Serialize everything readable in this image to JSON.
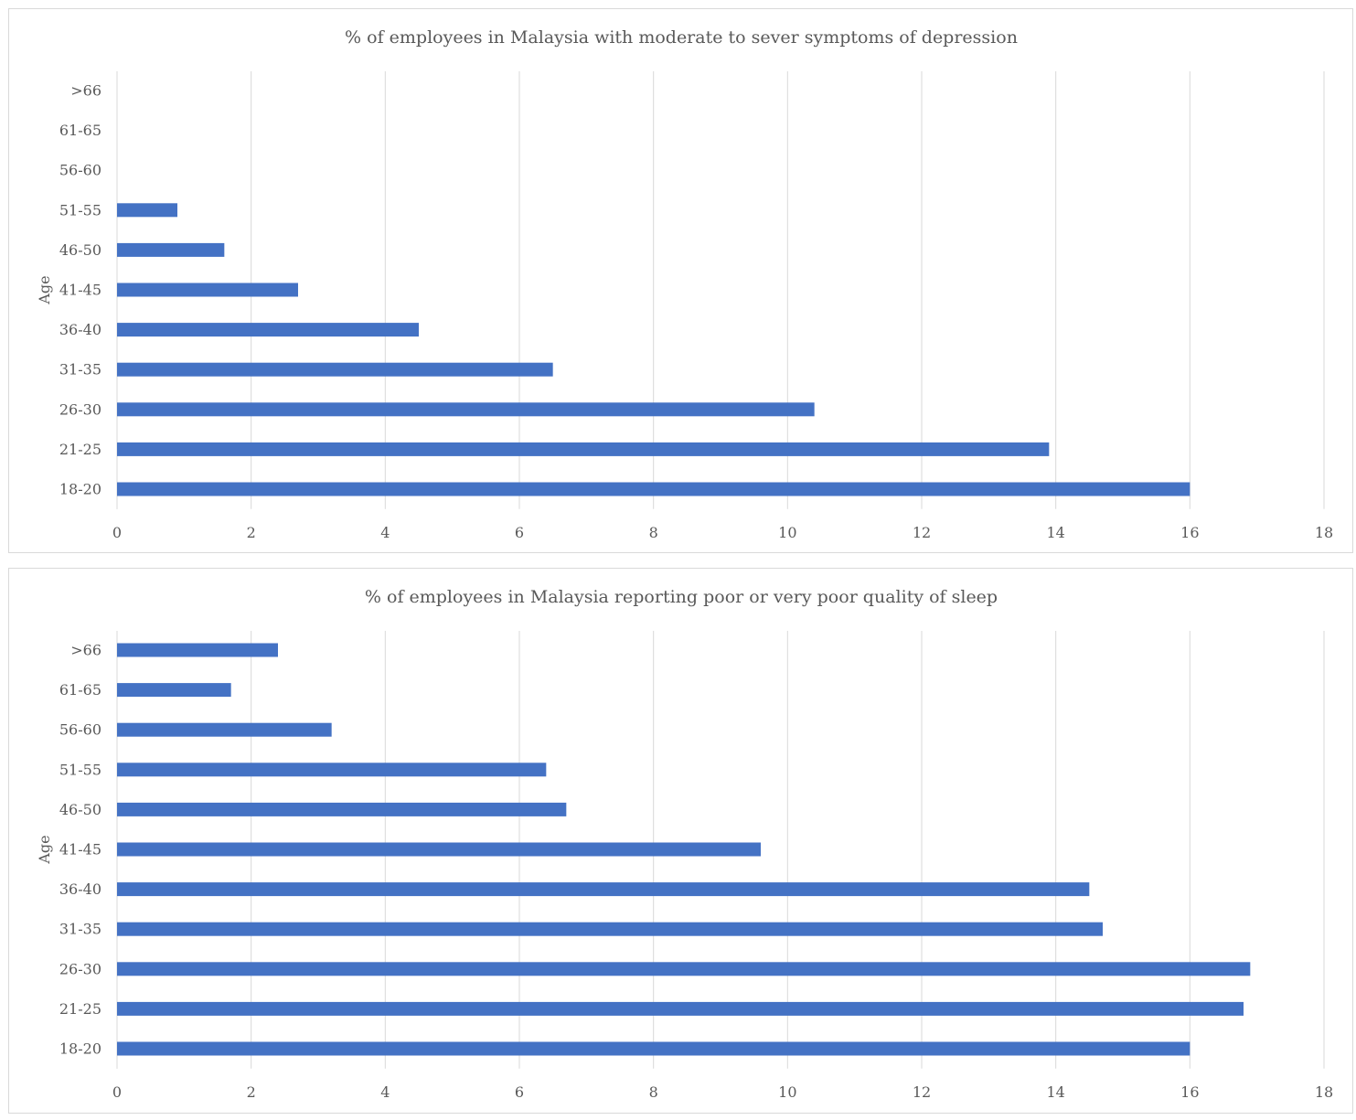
{
  "chart_data": [
    {
      "type": "bar",
      "orientation": "horizontal",
      "title": "% of employees in Malaysia with moderate to sever symptoms of depression",
      "ylabel": "Age",
      "xlabel": "",
      "categories": [
        "18-20",
        "21-25",
        "26-30",
        "31-35",
        "36-40",
        "41-45",
        "46-50",
        "51-55",
        "56-60",
        "61-65",
        ">66"
      ],
      "values": [
        16,
        13.9,
        10.4,
        6.5,
        4.5,
        2.7,
        1.6,
        0.9,
        0,
        0,
        0
      ],
      "xlim": [
        0,
        18
      ],
      "xticks": [
        "0",
        "2",
        "4",
        "6",
        "8",
        "10",
        "12",
        "14",
        "16",
        "18"
      ],
      "grid": true,
      "bar_color": "#4472c4"
    },
    {
      "type": "bar",
      "orientation": "horizontal",
      "title": "% of employees in Malaysia reporting poor or very poor quality of sleep",
      "ylabel": "Age",
      "xlabel": "",
      "categories": [
        "18-20",
        "21-25",
        "26-30",
        "31-35",
        "36-40",
        "41-45",
        "46-50",
        "51-55",
        "56-60",
        "61-65",
        ">66"
      ],
      "values": [
        16,
        16.8,
        16.9,
        14.7,
        14.5,
        9.6,
        6.7,
        6.4,
        3.2,
        1.7,
        2.4
      ],
      "xlim": [
        0,
        18
      ],
      "xticks": [
        "0",
        "2",
        "4",
        "6",
        "8",
        "10",
        "12",
        "14",
        "16",
        "18"
      ],
      "grid": true,
      "bar_color": "#4472c4"
    }
  ]
}
